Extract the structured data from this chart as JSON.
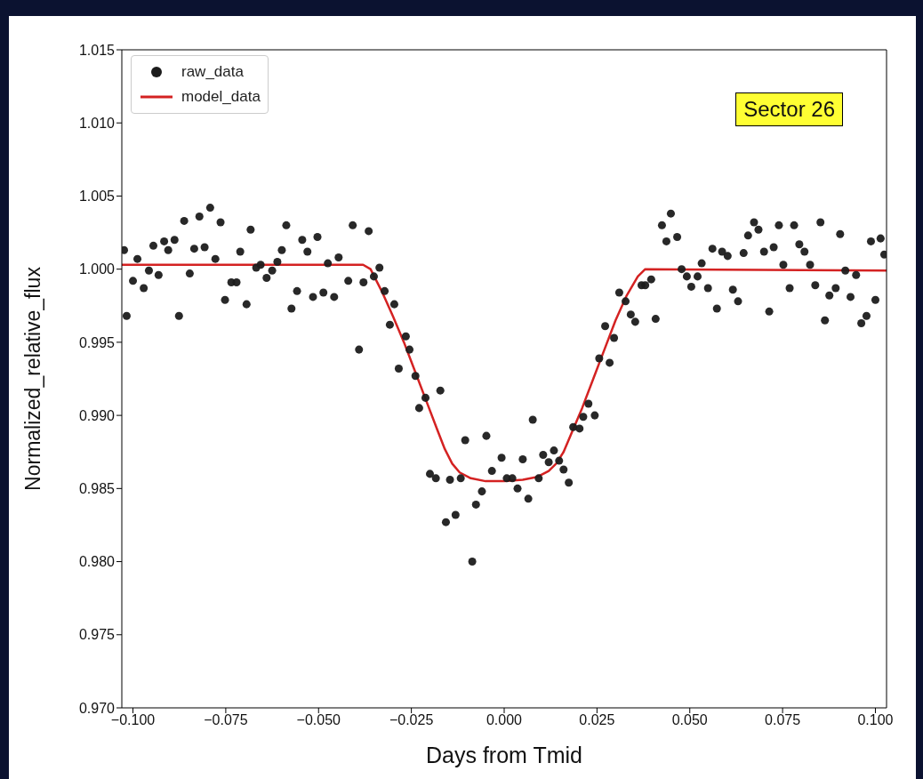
{
  "chart_data": {
    "type": "scatter",
    "xlabel": "Days from Tmid",
    "ylabel": "Normalized_relative_flux",
    "annotations": [
      "Sector 26"
    ],
    "legend": "top left",
    "xlim": [
      -0.103,
      0.103
    ],
    "xticks": [
      {
        "value": -0.1,
        "label": "−0.100"
      },
      {
        "value": -0.075,
        "label": "−0.075"
      },
      {
        "value": -0.05,
        "label": "−0.050"
      },
      {
        "value": -0.025,
        "label": "−0.025"
      },
      {
        "value": 0,
        "label": "0.000"
      },
      {
        "value": 0.025,
        "label": "0.025"
      },
      {
        "value": 0.05,
        "label": "0.050"
      },
      {
        "value": 0.075,
        "label": "0.075"
      },
      {
        "value": 0.1,
        "label": "0.100"
      }
    ],
    "ylim": [
      0.97,
      1.015
    ],
    "yticks": [
      {
        "value": 0.97,
        "label": "0.970"
      },
      {
        "value": 0.975,
        "label": "0.975"
      },
      {
        "value": 0.98,
        "label": "0.980"
      },
      {
        "value": 0.985,
        "label": "0.985"
      },
      {
        "value": 0.99,
        "label": "0.990"
      },
      {
        "value": 0.995,
        "label": "0.995"
      },
      {
        "value": 1,
        "label": "1.000"
      },
      {
        "value": 1.005,
        "label": "1.005"
      },
      {
        "value": 1.01,
        "label": "1.010"
      },
      {
        "value": 1.015,
        "label": "1.015"
      }
    ],
    "series": [
      {
        "name": "raw_data",
        "marker": "circle",
        "color": "#1c1c1c",
        "x": [
          -0.1024,
          -0.1017,
          -0.1,
          -0.0988,
          -0.0971,
          -0.0957,
          -0.0945,
          -0.0931,
          -0.0916,
          -0.0905,
          -0.0888,
          -0.0876,
          -0.0862,
          -0.0847,
          -0.0835,
          -0.0821,
          -0.0807,
          -0.0792,
          -0.0778,
          -0.0764,
          -0.0752,
          -0.0735,
          -0.0721,
          -0.0711,
          -0.0694,
          -0.0683,
          -0.0668,
          -0.0656,
          -0.064,
          -0.0625,
          -0.0611,
          -0.0599,
          -0.0587,
          -0.0573,
          -0.0558,
          -0.0544,
          -0.053,
          -0.0515,
          -0.0503,
          -0.0487,
          -0.0475,
          -0.0458,
          -0.0446,
          -0.042,
          -0.0408,
          -0.0391,
          -0.0379,
          -0.0365,
          -0.0351,
          -0.0336,
          -0.0322,
          -0.0308,
          -0.0296,
          -0.0284,
          -0.0265,
          -0.0255,
          -0.0239,
          -0.0229,
          -0.0212,
          -0.02,
          -0.0184,
          -0.0172,
          -0.0157,
          -0.0146,
          -0.0131,
          -0.0117,
          -0.0105,
          -0.0086,
          -0.0076,
          -0.006,
          -0.0048,
          -0.0033,
          -0.0007,
          0.0007,
          0.0022,
          0.0036,
          0.005,
          0.0065,
          0.0077,
          0.0093,
          0.0105,
          0.012,
          0.0134,
          0.0148,
          0.016,
          0.0174,
          0.0186,
          0.0203,
          0.0213,
          0.0227,
          0.0244,
          0.0256,
          0.0272,
          0.0284,
          0.0296,
          0.031,
          0.0327,
          0.0341,
          0.0353,
          0.037,
          0.038,
          0.0396,
          0.0408,
          0.0425,
          0.0437,
          0.0449,
          0.0466,
          0.0478,
          0.0492,
          0.0504,
          0.0521,
          0.0532,
          0.0549,
          0.0561,
          0.0573,
          0.0587,
          0.0602,
          0.0616,
          0.063,
          0.0645,
          0.0657,
          0.0673,
          0.0685,
          0.07,
          0.0714,
          0.0726,
          0.074,
          0.0752,
          0.0769,
          0.0781,
          0.0795,
          0.0809,
          0.0824,
          0.0838,
          0.0852,
          0.0864,
          0.0876,
          0.0893,
          0.0905,
          0.0919,
          0.0933,
          0.0948,
          0.0962,
          0.0976,
          0.0988,
          0.1,
          0.1014,
          0.1024
        ],
        "values": [
          1.0013,
          0.9968,
          0.9992,
          1.0007,
          0.9987,
          0.9999,
          1.0016,
          0.9996,
          1.0019,
          1.0013,
          1.002,
          0.9968,
          1.0033,
          0.9997,
          1.0014,
          1.0036,
          1.0015,
          1.0042,
          1.0007,
          1.0032,
          0.9979,
          0.9991,
          0.9991,
          1.0012,
          0.9976,
          1.0027,
          1.0001,
          1.0003,
          0.9994,
          0.9999,
          1.0005,
          1.0013,
          1.003,
          0.9973,
          0.9985,
          1.002,
          1.0012,
          0.9981,
          1.0022,
          0.9984,
          1.0004,
          0.9981,
          1.0008,
          0.9992,
          1.003,
          0.9945,
          0.9991,
          1.0026,
          0.9995,
          1.0001,
          0.9985,
          0.9962,
          0.9976,
          0.9932,
          0.9954,
          0.9945,
          0.9927,
          0.9905,
          0.9912,
          0.986,
          0.9857,
          0.9917,
          0.9827,
          0.9856,
          0.9832,
          0.9857,
          0.9883,
          0.98,
          0.9839,
          0.9848,
          0.9886,
          0.9862,
          0.9871,
          0.9857,
          0.9857,
          0.985,
          0.987,
          0.9843,
          0.9897,
          0.9857,
          0.9873,
          0.9868,
          0.9876,
          0.9869,
          0.9863,
          0.9854,
          0.9892,
          0.9891,
          0.9899,
          0.9908,
          0.99,
          0.9939,
          0.9961,
          0.9936,
          0.9953,
          0.9984,
          0.9978,
          0.9969,
          0.9964,
          0.9989,
          0.9989,
          0.9993,
          0.9966,
          1.003,
          1.0019,
          1.0038,
          1.0022,
          1,
          0.9995,
          0.9988,
          0.9995,
          1.0004,
          0.9987,
          1.0014,
          0.9973,
          1.0012,
          1.0009,
          0.9986,
          0.9978,
          1.0011,
          1.0023,
          1.0032,
          1.0027,
          1.0012,
          0.9971,
          1.0015,
          1.003,
          1.0003,
          0.9987,
          1.003,
          1.0017,
          1.0012,
          1.0003,
          0.9989,
          1.0032,
          0.9965,
          0.9982,
          0.9987,
          1.0024,
          0.9999,
          0.9981,
          0.9996,
          0.9963,
          0.9968,
          1.0019,
          0.9979,
          1.0021,
          1.001
        ]
      },
      {
        "name": "model_data",
        "type": "line",
        "marker": "none",
        "line_style": "solid",
        "color": "#d42222",
        "x": [
          -0.103,
          -0.038,
          -0.036,
          -0.033,
          -0.03,
          -0.027,
          -0.024,
          -0.021,
          -0.018,
          -0.016,
          -0.014,
          -0.012,
          -0.009,
          -0.005,
          0,
          0.005,
          0.009,
          0.012,
          0.014,
          0.016,
          0.018,
          0.021,
          0.024,
          0.027,
          0.03,
          0.033,
          0.036,
          0.038,
          0.103
        ],
        "values": [
          1.0003,
          1.0003,
          1,
          0.9985,
          0.9968,
          0.995,
          0.993,
          0.991,
          0.989,
          0.9877,
          0.9867,
          0.9861,
          0.9857,
          0.9855,
          0.9855,
          0.9856,
          0.9858,
          0.9862,
          0.9867,
          0.9875,
          0.9887,
          0.9905,
          0.9925,
          0.9945,
          0.9965,
          0.9982,
          0.9995,
          1,
          0.9999
        ]
      }
    ]
  }
}
